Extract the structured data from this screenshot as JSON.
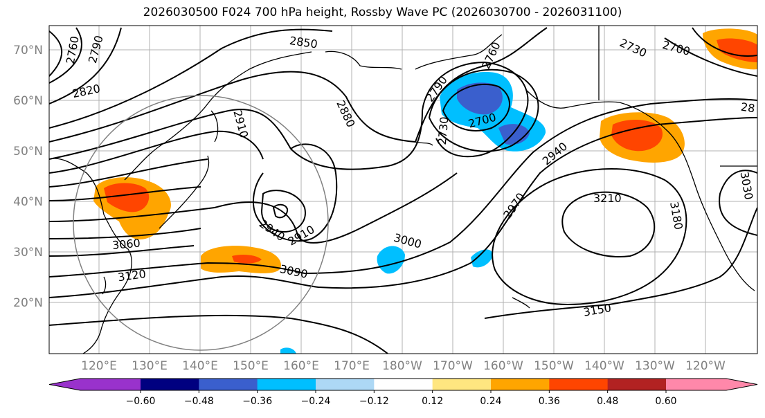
{
  "title": "2026030500 F024 700 hPa height, Rossby Wave PC (2026030700 - 2026031100)",
  "lat_labels": [
    "70°N",
    "60°N",
    "50°N",
    "40°N",
    "30°N",
    "20°N"
  ],
  "lon_labels": [
    "120°E",
    "130°E",
    "140°E",
    "150°E",
    "160°E",
    "170°E",
    "180°W",
    "170°W",
    "160°W",
    "150°W",
    "140°W",
    "130°W",
    "120°W"
  ],
  "contour_labels": [
    "2760",
    "2790",
    "2820",
    "2850",
    "2760",
    "2790",
    "2730",
    "2700",
    "2730",
    "2700",
    "2880",
    "2910",
    "2940",
    "2910",
    "3060",
    "3120",
    "3090",
    "3000",
    "2970",
    "2940",
    "3210",
    "3180",
    "3150",
    "3030",
    "28"
  ],
  "colorbar": {
    "tick_labels": [
      "−0.60",
      "−0.48",
      "−0.36",
      "−0.24",
      "−0.12",
      "0.12",
      "0.24",
      "0.36",
      "0.48",
      "0.60"
    ],
    "colors": [
      "#9932cc",
      "#000080",
      "#3a5fcd",
      "#00bfff",
      "#add8f5",
      "#ffffff",
      "#ffe680",
      "#ffa500",
      "#ff4500",
      "#b22222",
      "#ff88aa"
    ]
  }
}
